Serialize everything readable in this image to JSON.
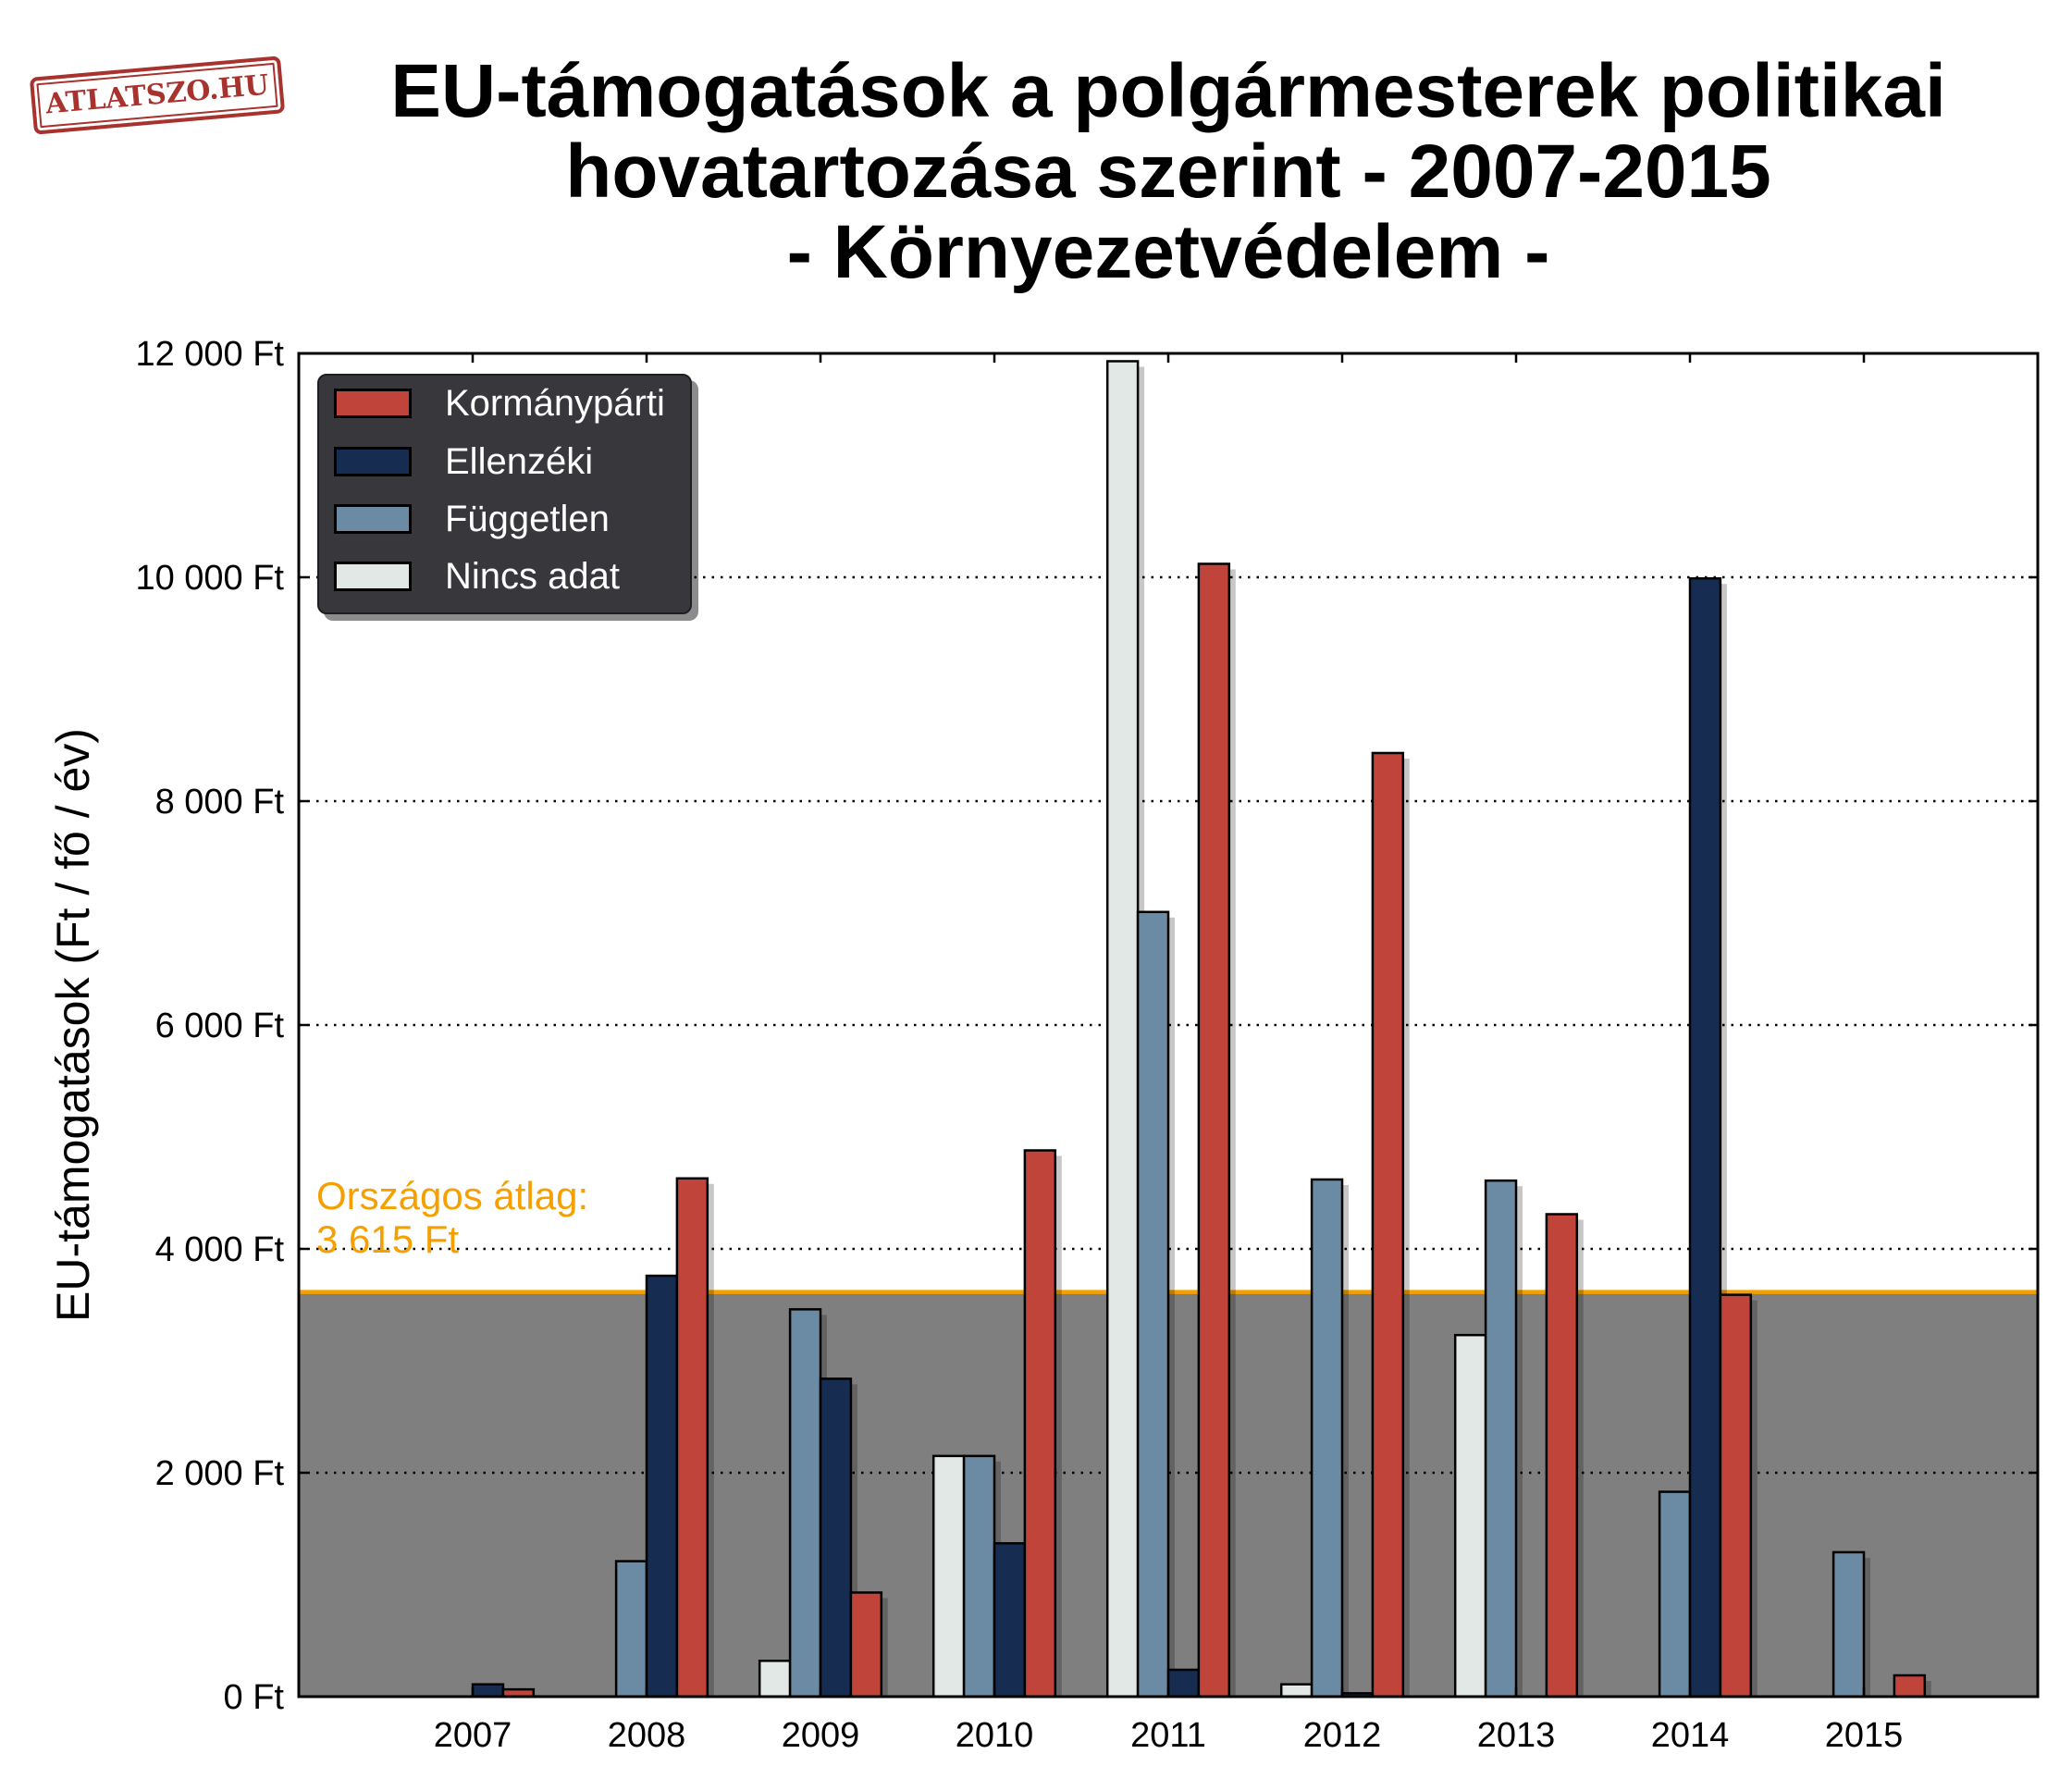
{
  "logo": {
    "text": "ATLATSZO.HU"
  },
  "chart_data": {
    "type": "bar",
    "title_lines": [
      "EU-támogatások a polgármesterek politikai",
      "hovatartozása szerint - 2007-2015",
      "- Környezetvédelem -"
    ],
    "ylabel": "EU-támogatások (Ft / fő / év)",
    "categories": [
      "2007",
      "2008",
      "2009",
      "2010",
      "2011",
      "2012",
      "2013",
      "2014",
      "2015"
    ],
    "ylim": [
      0,
      12000
    ],
    "yticks": [
      0,
      2000,
      4000,
      6000,
      8000,
      10000,
      12000
    ],
    "ytick_labels": [
      "0 Ft",
      "2 000 Ft",
      "4 000 Ft",
      "6 000 Ft",
      "8 000 Ft",
      "10 000 Ft",
      "12 000 Ft"
    ],
    "series": [
      {
        "name": "Nincs adat",
        "color": "#e2e8e5",
        "values": [
          0,
          0,
          320,
          2150,
          11930,
          110,
          3230,
          0,
          0
        ]
      },
      {
        "name": "Független",
        "color": "#6b8ba4",
        "values": [
          0,
          1210,
          3460,
          2150,
          7010,
          4620,
          4610,
          1830,
          1290
        ]
      },
      {
        "name": "Ellenzéki",
        "color": "#172c51",
        "values": [
          110,
          3760,
          2840,
          1370,
          240,
          30,
          0,
          9990,
          0
        ]
      },
      {
        "name": "Kormánypárti",
        "color": "#c1443a",
        "values": [
          65,
          4630,
          930,
          4880,
          10120,
          8430,
          4310,
          3590,
          190
        ]
      }
    ],
    "reference_line": {
      "value": 3615,
      "color": "#f5a000",
      "band_color": "#7f7f7f",
      "label": [
        "Országos átlag:",
        "3 615 Ft"
      ]
    },
    "grid": "horizontal dotted",
    "legend": "top-left"
  }
}
